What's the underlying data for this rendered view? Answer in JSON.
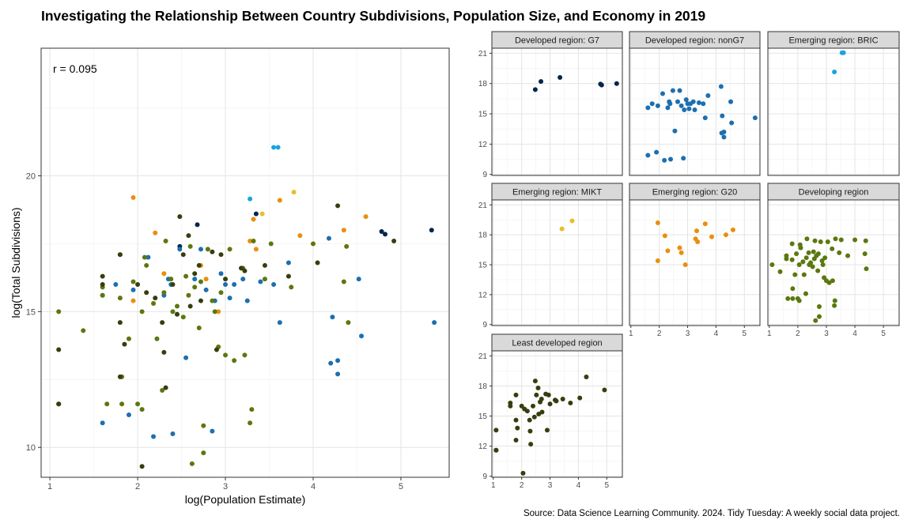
{
  "title": "Investigating the Relationship Between Country Subdivisions, Population Size, and Economy in 2019",
  "caption": "Source: Data Science Learning Community. 2024. Tidy Tuesday: A weekly social data project.",
  "colors": {
    "Developed region: G7": "#03254E",
    "Developed region: nonG7": "#1C6FB0",
    "Emerging region: BRIC": "#1AA4DD",
    "Emerging region: MIKT": "#E8BE2C",
    "Emerging region: G20": "#EA8F0C",
    "Developing region": "#5B780E",
    "Least developed region": "#363E0F"
  },
  "chart_data": {
    "type": "scatter",
    "annotation": "r = 0.095",
    "xlabel": "log(Population Estimate)",
    "ylabel": "log(Total Subdivisions)",
    "main": {
      "xlim": [
        0.9,
        5.55
      ],
      "ylim": [
        8.9,
        24.7
      ],
      "xticks": [
        1,
        2,
        3,
        4,
        5
      ],
      "yticks": [
        10,
        15,
        20
      ]
    },
    "facets": {
      "xlim": [
        0.95,
        5.55
      ],
      "ylim": [
        8.9,
        21.5
      ],
      "xticks": [
        1,
        2,
        3,
        4,
        5
      ],
      "yticks": [
        9,
        12,
        15,
        18,
        21
      ]
    },
    "series": [
      {
        "name": "Developed region: G7",
        "points": [
          [
            2.48,
            17.4
          ],
          [
            2.68,
            18.2
          ],
          [
            3.35,
            18.6
          ],
          [
            4.78,
            17.95
          ],
          [
            4.82,
            17.85
          ],
          [
            5.35,
            18.0
          ]
        ]
      },
      {
        "name": "Developed region: nonG7",
        "points": [
          [
            1.6,
            15.6
          ],
          [
            1.75,
            16.0
          ],
          [
            1.95,
            15.8
          ],
          [
            2.12,
            17.0
          ],
          [
            2.3,
            15.6
          ],
          [
            2.35,
            16.2
          ],
          [
            2.38,
            16.0
          ],
          [
            2.48,
            17.3
          ],
          [
            2.65,
            16.2
          ],
          [
            2.72,
            17.3
          ],
          [
            2.78,
            15.8
          ],
          [
            2.88,
            15.4
          ],
          [
            2.95,
            16.4
          ],
          [
            3.0,
            16.0
          ],
          [
            3.05,
            15.5
          ],
          [
            3.1,
            16.0
          ],
          [
            3.2,
            16.2
          ],
          [
            3.25,
            15.4
          ],
          [
            3.4,
            16.1
          ],
          [
            3.55,
            16.0
          ],
          [
            3.62,
            14.6
          ],
          [
            3.72,
            16.8
          ],
          [
            4.18,
            17.7
          ],
          [
            4.22,
            14.8
          ],
          [
            4.28,
            13.2
          ],
          [
            4.52,
            16.2
          ],
          [
            4.55,
            14.1
          ],
          [
            5.38,
            14.6
          ],
          [
            1.6,
            10.9
          ],
          [
            1.9,
            11.2
          ],
          [
            2.18,
            10.4
          ],
          [
            2.4,
            10.5
          ],
          [
            2.55,
            13.3
          ],
          [
            2.85,
            10.6
          ],
          [
            4.2,
            13.1
          ],
          [
            4.28,
            12.7
          ]
        ]
      },
      {
        "name": "Emerging region: BRIC",
        "points": [
          [
            3.55,
            21.05
          ],
          [
            3.6,
            21.05
          ],
          [
            3.28,
            19.15
          ]
        ]
      },
      {
        "name": "Emerging region: MIKT",
        "points": [
          [
            3.42,
            18.6
          ],
          [
            3.78,
            19.4
          ]
        ]
      },
      {
        "name": "Emerging region: G20",
        "points": [
          [
            1.95,
            19.2
          ],
          [
            2.2,
            17.9
          ],
          [
            2.3,
            16.4
          ],
          [
            1.95,
            15.4
          ],
          [
            2.72,
            16.7
          ],
          [
            2.78,
            16.2
          ],
          [
            2.92,
            15.0
          ],
          [
            3.28,
            17.6
          ],
          [
            3.32,
            18.4
          ],
          [
            3.35,
            17.3
          ],
          [
            3.62,
            19.1
          ],
          [
            3.85,
            17.8
          ],
          [
            4.35,
            18.0
          ],
          [
            4.6,
            18.5
          ]
        ]
      },
      {
        "name": "Developing region",
        "points": [
          [
            1.1,
            15.0
          ],
          [
            1.38,
            14.3
          ],
          [
            1.6,
            15.9
          ],
          [
            1.6,
            15.6
          ],
          [
            1.65,
            11.6
          ],
          [
            1.8,
            17.1
          ],
          [
            1.8,
            15.5
          ],
          [
            1.82,
            12.6
          ],
          [
            1.82,
            11.6
          ],
          [
            1.9,
            14.0
          ],
          [
            1.95,
            16.1
          ],
          [
            2.0,
            11.6
          ],
          [
            2.05,
            11.4
          ],
          [
            2.05,
            15.0
          ],
          [
            2.08,
            17.0
          ],
          [
            2.1,
            16.7
          ],
          [
            2.18,
            15.3
          ],
          [
            2.22,
            14.0
          ],
          [
            2.28,
            12.1
          ],
          [
            2.3,
            15.7
          ],
          [
            2.32,
            17.6
          ],
          [
            2.38,
            16.2
          ],
          [
            2.4,
            15.0
          ],
          [
            2.45,
            15.2
          ],
          [
            2.52,
            14.8
          ],
          [
            2.55,
            16.3
          ],
          [
            2.58,
            15.6
          ],
          [
            2.6,
            17.4
          ],
          [
            2.62,
            9.4
          ],
          [
            2.65,
            15.9
          ],
          [
            2.7,
            14.4
          ],
          [
            2.72,
            16.1
          ],
          [
            2.75,
            9.8
          ],
          [
            2.75,
            10.8
          ],
          [
            2.8,
            17.3
          ],
          [
            2.85,
            15.4
          ],
          [
            2.88,
            15.0
          ],
          [
            2.92,
            13.7
          ],
          [
            2.95,
            15.7
          ],
          [
            3.0,
            13.4
          ],
          [
            3.05,
            17.3
          ],
          [
            3.1,
            13.2
          ],
          [
            3.2,
            16.6
          ],
          [
            3.22,
            13.4
          ],
          [
            3.28,
            10.9
          ],
          [
            3.3,
            11.4
          ],
          [
            3.32,
            17.6
          ],
          [
            3.45,
            16.2
          ],
          [
            3.52,
            17.5
          ],
          [
            3.75,
            15.9
          ],
          [
            4.0,
            17.5
          ],
          [
            4.35,
            16.1
          ],
          [
            4.4,
            14.6
          ],
          [
            4.38,
            17.4
          ]
        ]
      },
      {
        "name": "Least developed region",
        "points": [
          [
            1.1,
            13.6
          ],
          [
            1.1,
            11.6
          ],
          [
            1.6,
            16.3
          ],
          [
            1.6,
            16.0
          ],
          [
            1.8,
            17.1
          ],
          [
            1.8,
            14.6
          ],
          [
            1.85,
            13.8
          ],
          [
            1.8,
            12.6
          ],
          [
            2.0,
            16.0
          ],
          [
            2.05,
            9.3
          ],
          [
            2.1,
            15.7
          ],
          [
            2.2,
            15.5
          ],
          [
            2.28,
            14.6
          ],
          [
            2.3,
            13.5
          ],
          [
            2.32,
            12.2
          ],
          [
            2.4,
            16.0
          ],
          [
            2.45,
            14.9
          ],
          [
            2.48,
            18.5
          ],
          [
            2.52,
            17.1
          ],
          [
            2.58,
            17.8
          ],
          [
            2.6,
            15.2
          ],
          [
            2.65,
            16.4
          ],
          [
            2.7,
            16.7
          ],
          [
            2.72,
            15.4
          ],
          [
            2.85,
            17.2
          ],
          [
            2.95,
            17.1
          ],
          [
            3.0,
            16.2
          ],
          [
            3.18,
            16.6
          ],
          [
            3.22,
            16.5
          ],
          [
            3.45,
            16.7
          ],
          [
            3.72,
            16.3
          ],
          [
            4.05,
            16.8
          ],
          [
            4.28,
            18.9
          ],
          [
            4.92,
            17.6
          ],
          [
            1.1,
            11.6
          ],
          [
            2.9,
            13.6
          ]
        ]
      }
    ]
  }
}
